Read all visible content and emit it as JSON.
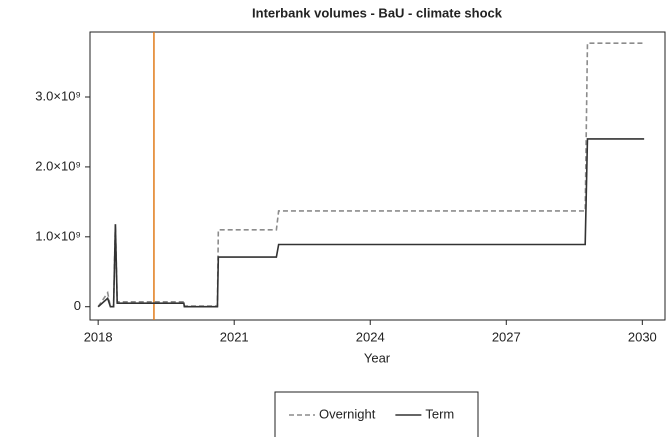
{
  "chart_data": {
    "type": "line",
    "title": "Interbank volumes - BaU - climate shock",
    "x_label": "Year",
    "x": [
      2018.0,
      2018.21,
      2018.27,
      2018.34,
      2018.38,
      2018.42,
      2019.89,
      2019.9,
      2020.63,
      2020.65,
      2021.93,
      2021.98,
      2028.74,
      2028.79,
      2030.04
    ],
    "series": [
      {
        "name": "Overnight",
        "color": "#8c8c8c",
        "dash": true,
        "values": [
          0,
          200000000,
          0,
          0,
          1180000000,
          70000000,
          70000000,
          10000000,
          10000000,
          1100000000,
          1100000000,
          1370000000,
          1370000000,
          3770000000,
          3770000000
        ]
      },
      {
        "name": "Term",
        "color": "#333333",
        "dash": false,
        "values": [
          0,
          120000000,
          0,
          0,
          1180000000,
          50000000,
          50000000,
          0,
          0,
          710000000,
          710000000,
          890000000,
          890000000,
          2400000000,
          2400000000
        ]
      }
    ],
    "xlim": [
      2017.82,
      2030.5
    ],
    "xticks": [
      2018,
      2021,
      2024,
      2027,
      2030
    ],
    "ylim": [
      -190000000,
      3930000000
    ],
    "yticks": [
      0,
      {
        "value": 1000000000,
        "label": "1.0×10⁹"
      },
      {
        "value": 2000000000,
        "label": "2.0×10⁹"
      },
      {
        "value": 3000000000,
        "label": "3.0×10⁹"
      }
    ],
    "vline": 2019.23,
    "vline_color": "#e07b1a",
    "legend": "bottom"
  }
}
